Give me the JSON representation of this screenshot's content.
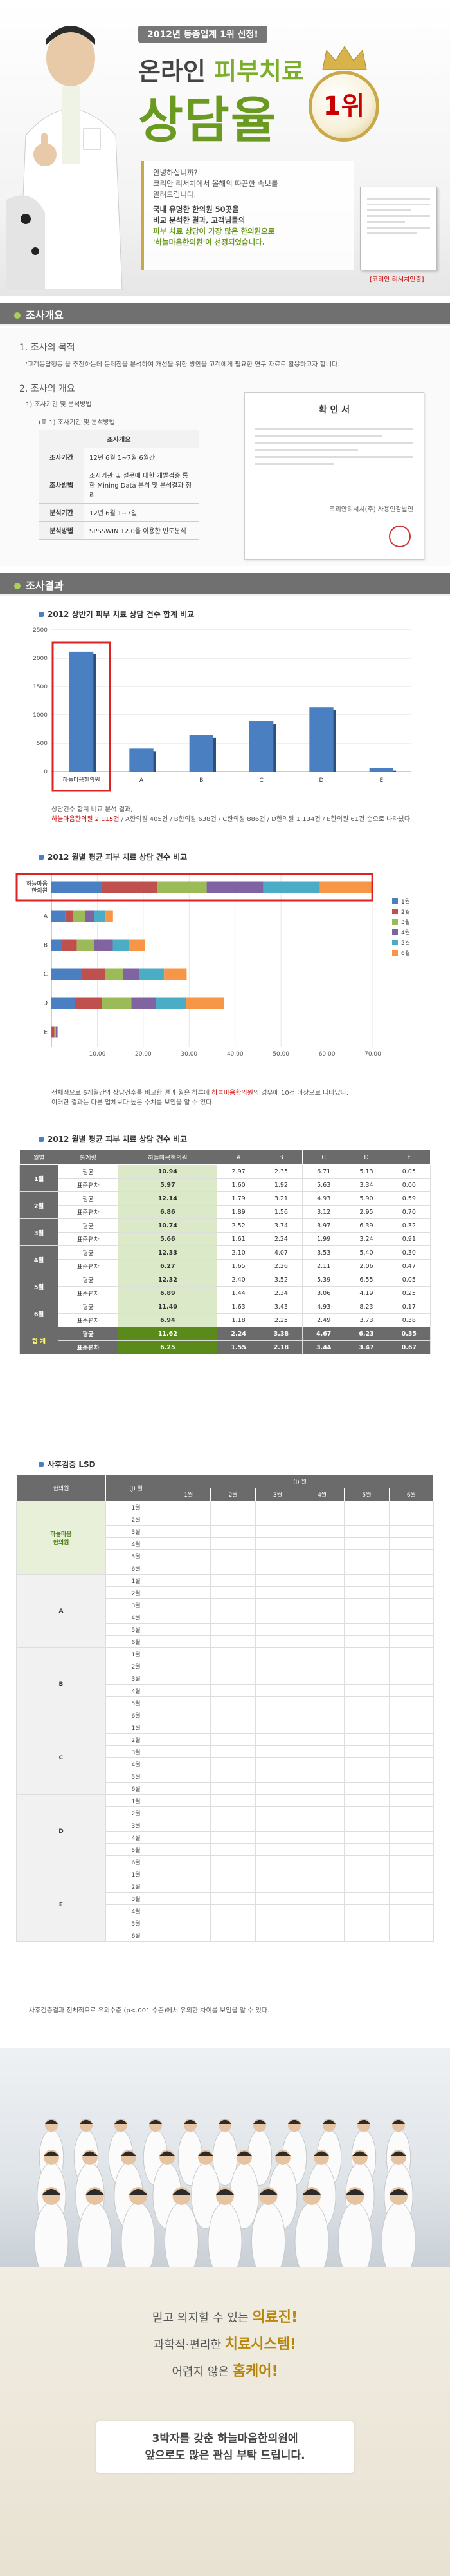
{
  "hero": {
    "badge": "2012년 동종업계 1위 선정!",
    "subtitle_a": "온라인 ",
    "subtitle_b": "피부치료",
    "title": "상담율",
    "rank": "1위",
    "intro_lines": [
      "안녕하십니까?",
      "코리안 리서치에서 올해의 따끈한 속보를",
      "알려드립니다."
    ],
    "intro_hl": [
      "국내 유명한 한의원 50곳을",
      "비교 분석한 결과, 고객님들의",
      "피부 치료 상담이 가장 많은 한의원으로",
      "'하늘마음한의원'이 선정되었습니다."
    ],
    "cert_caption": "[코리안 리서치인증]"
  },
  "section1": {
    "header": "조사개요",
    "h1": "1. 조사의 목적",
    "purpose": "'고객응답행동'을 추진하는데 문제점을 분석하여 개선을 위한 방안을 고객에게 필요한 연구 자료로 활용하고자 합니다.",
    "h2": "2. 조사의 개요",
    "h2a": "1) 조사기간 및 분석방법",
    "table_caption": "(표 1) 조사기간 및 분석방법",
    "table_head": "조사개요",
    "rows": [
      {
        "k": "조사기간",
        "v": "12년 6월 1~7월 6월간"
      },
      {
        "k": "조사방법",
        "v": "조사기관 및 설문에 대한 개발검증 통한 Mining Data 분석 및 분석결과 정리"
      },
      {
        "k": "분석기간",
        "v": "12년 6월 1~7일"
      },
      {
        "k": "분석방법",
        "v": "SPSSWIN 12.0을 이용한 빈도분석"
      }
    ],
    "doc_title": "확 인 서",
    "doc_org": "코리안리서치(주) 사용인감날인"
  },
  "section2": {
    "header": "조사결과",
    "chart1_title": "2012 상반기 피부 치료 상담 건수 합계 비교",
    "chart1_note_a": "상담건수 합계 비교 분석 결과,",
    "chart1_note_b": "하늘마음한의원 2,115건",
    "chart1_note_c": " / A한의원 405건 / B한의원 638건 / C한의원 886건 / D한의원 1,134건 / E한의원 61건 순으로 나타났다.",
    "chart2_title": "2012 월별 평균 피부 치료 상담 건수 비교",
    "chart2_note_a": "전체적으로 6개월간의 상담건수를 비교한 결과 월은 하루에 ",
    "chart2_note_b": "하늘마음한의원",
    "chart2_note_c": "의 경우에 10건 이상으로 나타났다.",
    "chart2_note_d": "이러한 결과는 다른 업체보다 높은 수치를 보임을 알 수 있다.",
    "table_title": "2012 월별 평균 피부 치료 상담 건수 비교",
    "table_headers": [
      "월별",
      "통계량",
      "하늘마음한의원",
      "A",
      "B",
      "C",
      "D",
      "E"
    ],
    "table_rows": [
      {
        "m": "1월",
        "r": [
          [
            "평균",
            "10.94",
            "2.97",
            "2.35",
            "6.71",
            "5.13",
            "0.05"
          ],
          [
            "표준편차",
            "5.97",
            "1.60",
            "1.92",
            "5.63",
            "3.34",
            "0.00"
          ]
        ]
      },
      {
        "m": "2월",
        "r": [
          [
            "평균",
            "12.14",
            "1.79",
            "3.21",
            "4.93",
            "5.90",
            "0.59"
          ],
          [
            "표준편차",
            "6.86",
            "1.89",
            "1.56",
            "3.12",
            "2.95",
            "0.70"
          ]
        ]
      },
      {
        "m": "3월",
        "r": [
          [
            "평균",
            "10.74",
            "2.52",
            "3.74",
            "3.97",
            "6.39",
            "0.32"
          ],
          [
            "표준편차",
            "5.66",
            "1.61",
            "2.24",
            "1.99",
            "3.24",
            "0.91"
          ]
        ]
      },
      {
        "m": "4월",
        "r": [
          [
            "평균",
            "12.33",
            "2.10",
            "4.07",
            "3.53",
            "5.40",
            "0.30"
          ],
          [
            "표준편차",
            "6.27",
            "1.65",
            "2.26",
            "2.11",
            "2.06",
            "0.47"
          ]
        ]
      },
      {
        "m": "5월",
        "r": [
          [
            "평균",
            "12.32",
            "2.40",
            "3.52",
            "5.39",
            "6.55",
            "0.05"
          ],
          [
            "표준편차",
            "6.89",
            "1.44",
            "2.34",
            "3.06",
            "4.19",
            "0.25"
          ]
        ]
      },
      {
        "m": "6월",
        "r": [
          [
            "평균",
            "11.40",
            "1.63",
            "3.43",
            "4.93",
            "8.23",
            "0.17"
          ],
          [
            "표준편차",
            "6.94",
            "1.18",
            "2.25",
            "2.49",
            "3.73",
            "0.38"
          ]
        ]
      }
    ],
    "sum_label": "합 계",
    "sum_rows": [
      [
        "평균",
        "11.62",
        "2.24",
        "3.38",
        "4.67",
        "6.23",
        "0.35"
      ],
      [
        "표준편차",
        "6.25",
        "1.55",
        "2.18",
        "3.44",
        "3.47",
        "0.67"
      ]
    ],
    "lsd_title": "사후검증 LSD",
    "lsd_head1": "(J) 월",
    "lsd_head2": "(I) 월",
    "lsd_head_col": "한의원",
    "lsd_months": [
      "1월",
      "2월",
      "3월",
      "4월",
      "5월",
      "6월"
    ],
    "lsd_groups": [
      "하늘마음\n한의원",
      "A",
      "B",
      "C",
      "D",
      "E"
    ],
    "lsd_note": "사후검증결과 전체적으로 유의수준 (p<.001 수준)에서 유의한 차이를 보임을 알 수 있다."
  },
  "closing": {
    "l1a": "믿고 의지할 수 있는 ",
    "l1b": "의료진!",
    "l2a": "과학적·편리한 ",
    "l2b": "치료시스템!",
    "l3a": "어렵지 않은 ",
    "l3b": "홈케어!",
    "b1": "3박자를 갖춘 하늘마음한의원에",
    "b2": "앞으로도 많은 관심 부탁 드립니다."
  },
  "chart_data": [
    {
      "type": "bar",
      "title": "2012 상반기 피부 치료 상담 건수 합계 비교",
      "categories": [
        "하늘마음한의원",
        "A",
        "B",
        "C",
        "D",
        "E"
      ],
      "values": [
        2115,
        405,
        638,
        886,
        1134,
        61
      ],
      "ylim": [
        0,
        2500
      ],
      "yticks": [
        0,
        500,
        1000,
        1500,
        2000,
        2500
      ],
      "color": "#4a7fc1"
    },
    {
      "type": "bar",
      "orientation": "horizontal-stacked",
      "title": "2012 월별 평균 피부 치료 상담 건수 비교",
      "categories": [
        "하늘마음\n한의원",
        "A",
        "B",
        "C",
        "D",
        "E"
      ],
      "series": [
        {
          "name": "1월",
          "values": [
            10.94,
            2.97,
            2.35,
            6.71,
            5.13,
            0.05
          ],
          "color": "#4a7fc1"
        },
        {
          "name": "2월",
          "values": [
            12.14,
            1.79,
            3.21,
            4.93,
            5.9,
            0.59
          ],
          "color": "#c0504d"
        },
        {
          "name": "3월",
          "values": [
            10.74,
            2.52,
            3.74,
            3.97,
            6.39,
            0.32
          ],
          "color": "#9bbb59"
        },
        {
          "name": "4월",
          "values": [
            12.33,
            2.1,
            4.07,
            3.53,
            5.4,
            0.3
          ],
          "color": "#8064a2"
        },
        {
          "name": "5월",
          "values": [
            12.32,
            2.4,
            3.52,
            5.39,
            6.55,
            0.05
          ],
          "color": "#4bacc6"
        },
        {
          "name": "6월",
          "values": [
            11.4,
            1.63,
            3.43,
            4.93,
            8.23,
            0.17
          ],
          "color": "#f79646"
        }
      ],
      "xlim": [
        0,
        70
      ],
      "xticks": [
        "10.00",
        "20.00",
        "30.00",
        "40.00",
        "50.00",
        "60.00",
        "70.00"
      ],
      "legend": "right"
    }
  ]
}
